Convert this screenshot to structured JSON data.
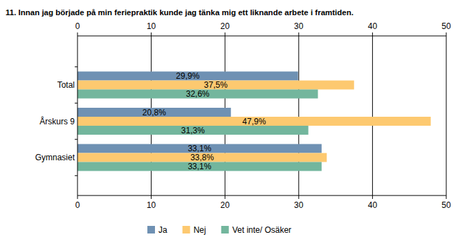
{
  "chart_data": {
    "type": "bar",
    "orientation": "horizontal",
    "title": "11. Innan jag började på min feriepraktik kunde jag tänka mig ett liknande arbete i framtiden.",
    "categories": [
      "Total",
      "Årskurs 9",
      "Gymnasiet"
    ],
    "series": [
      {
        "name": "Ja",
        "color": "#6f91b3",
        "values": [
          29.9,
          20.8,
          33.1
        ],
        "value_labels": [
          "29,9%",
          "20,8%",
          "33,1%"
        ]
      },
      {
        "name": "Nej",
        "color": "#fdc970",
        "values": [
          37.5,
          47.9,
          33.8
        ],
        "value_labels": [
          "37,5%",
          "47,9%",
          "33,8%"
        ]
      },
      {
        "name": "Vet inte/ Osäker",
        "color": "#73b69d",
        "values": [
          32.6,
          31.3,
          33.1
        ],
        "value_labels": [
          "32,6%",
          "31,3%",
          "33,1%"
        ]
      }
    ],
    "xlim": [
      0,
      50
    ],
    "xticks": [
      0,
      10,
      20,
      30,
      40,
      50
    ],
    "grid": true,
    "data_labels": true,
    "legend": "bottom"
  }
}
